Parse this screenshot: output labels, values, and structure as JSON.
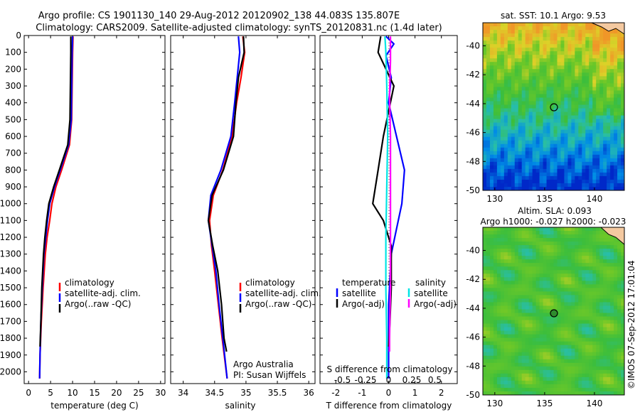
{
  "header": {
    "line1": "Argo profile: CS 1901130_140 29-Aug-2012 20120902_138 44.083S 135.807E",
    "line2": "Climatology: CARS2009. Satellite-adjusted climatology: synTS_20120831.nc (1.4d later)"
  },
  "colors": {
    "climatology": "#ff0000",
    "satellite": "#0000ff",
    "argo": "#000000",
    "salinity_sat": "#00e5e5",
    "salinity_argo": "#ff00ff"
  },
  "chart_data": [
    {
      "id": "temperature",
      "type": "line",
      "xlabel": "temperature (deg C)",
      "ylabel": "",
      "xlim": [
        -1,
        31
      ],
      "ylim": [
        2070,
        0
      ],
      "xticks": [
        0,
        5,
        10,
        15,
        20,
        25,
        30
      ],
      "yticks": [
        0,
        100,
        200,
        300,
        400,
        500,
        600,
        700,
        800,
        900,
        1000,
        1100,
        1200,
        1300,
        1400,
        1500,
        1600,
        1700,
        1800,
        1900,
        2000
      ],
      "legend": {
        "placement": "lower-middle",
        "entries": [
          "climatology",
          "satellite-adj. clim.",
          "Argo(..raw -QC)"
        ]
      },
      "series": [
        {
          "name": "climatology",
          "color": "red",
          "points": [
            [
              10.1,
              5
            ],
            [
              10.0,
              100
            ],
            [
              9.9,
              300
            ],
            [
              9.8,
              500
            ],
            [
              9.3,
              650
            ],
            [
              7.5,
              800
            ],
            [
              6.2,
              900
            ],
            [
              5.3,
              1000
            ],
            [
              4.8,
              1100
            ],
            [
              4.2,
              1200
            ],
            [
              3.8,
              1300
            ],
            [
              3.3,
              1500
            ],
            [
              2.9,
              1700
            ],
            [
              2.6,
              1900
            ],
            [
              2.5,
              2040
            ]
          ]
        },
        {
          "name": "satellite-adj. clim.",
          "color": "blue",
          "points": [
            [
              10.0,
              5
            ],
            [
              9.9,
              100
            ],
            [
              9.8,
              300
            ],
            [
              9.7,
              500
            ],
            [
              9.1,
              650
            ],
            [
              7.2,
              800
            ],
            [
              5.9,
              900
            ],
            [
              4.8,
              1000
            ],
            [
              4.3,
              1100
            ],
            [
              3.9,
              1200
            ],
            [
              3.5,
              1300
            ],
            [
              3.1,
              1500
            ],
            [
              2.8,
              1700
            ],
            [
              2.6,
              1900
            ],
            [
              2.5,
              2040
            ]
          ]
        },
        {
          "name": "Argo(..raw -QC)",
          "color": "black",
          "points": [
            [
              9.6,
              5
            ],
            [
              9.6,
              100
            ],
            [
              9.5,
              300
            ],
            [
              9.4,
              500
            ],
            [
              8.9,
              650
            ],
            [
              7.0,
              800
            ],
            [
              5.7,
              900
            ],
            [
              4.6,
              1000
            ],
            [
              4.1,
              1100
            ],
            [
              3.7,
              1200
            ],
            [
              3.4,
              1300
            ],
            [
              3.0,
              1500
            ],
            [
              2.8,
              1700
            ],
            [
              2.6,
              1850
            ]
          ]
        }
      ]
    },
    {
      "id": "salinity",
      "type": "line",
      "xlabel": "salinity",
      "ylabel": "",
      "xlim": [
        33.8,
        36.1
      ],
      "ylim": [
        2070,
        0
      ],
      "xticks": [
        34,
        34.5,
        35,
        35.5,
        36
      ],
      "legend": {
        "placement": "lower-right",
        "entries": [
          "climatology",
          "satellite-adj. clim.",
          "Argo(..raw -QC)"
        ]
      },
      "series": [
        {
          "name": "climatology",
          "color": "red",
          "points": [
            [
              34.95,
              5
            ],
            [
              34.98,
              100
            ],
            [
              34.92,
              250
            ],
            [
              34.85,
              400
            ],
            [
              34.78,
              600
            ],
            [
              34.63,
              800
            ],
            [
              34.48,
              950
            ],
            [
              34.42,
              1100
            ],
            [
              34.45,
              1250
            ],
            [
              34.5,
              1400
            ],
            [
              34.56,
              1600
            ],
            [
              34.62,
              1800
            ],
            [
              34.7,
              2040
            ]
          ]
        },
        {
          "name": "satellite-adj. clim.",
          "color": "blue",
          "points": [
            [
              34.88,
              5
            ],
            [
              34.9,
              100
            ],
            [
              34.86,
              250
            ],
            [
              34.82,
              400
            ],
            [
              34.76,
              600
            ],
            [
              34.6,
              800
            ],
            [
              34.44,
              950
            ],
            [
              34.4,
              1100
            ],
            [
              34.46,
              1250
            ],
            [
              34.52,
              1400
            ],
            [
              34.57,
              1600
            ],
            [
              34.63,
              1800
            ],
            [
              34.7,
              2040
            ]
          ]
        },
        {
          "name": "Argo(..raw -QC)",
          "color": "black",
          "points": [
            [
              34.96,
              5
            ],
            [
              34.97,
              100
            ],
            [
              34.88,
              250
            ],
            [
              34.84,
              400
            ],
            [
              34.8,
              600
            ],
            [
              34.64,
              800
            ],
            [
              34.46,
              950
            ],
            [
              34.4,
              1100
            ],
            [
              34.47,
              1250
            ],
            [
              34.55,
              1400
            ],
            [
              34.61,
              1600
            ],
            [
              34.65,
              1800
            ],
            [
              34.69,
              1880
            ]
          ]
        }
      ],
      "annotations": [
        "Argo Australia",
        "PI: Susan Wijffels"
      ]
    },
    {
      "id": "differences",
      "type": "line",
      "xlabel": "T difference from climatology",
      "xlabel_top": "S difference from climatology",
      "xlim": [
        -2.6,
        2.6
      ],
      "ylim": [
        2070,
        0
      ],
      "xticks": [
        -2,
        -1,
        0,
        1,
        2
      ],
      "xticks_s": [
        -0.5,
        -0.25,
        0,
        0.25,
        0.5
      ],
      "legend": {
        "placement": "lower-center",
        "temperature_heading": "temperature",
        "salinity_heading": "salinity",
        "entries": [
          "satellite",
          "Argo(-adj)",
          "satellite",
          "Argo(-adj)"
        ]
      },
      "series": [
        {
          "name": "temperature satellite",
          "color": "blue",
          "points": [
            [
              -0.1,
              5
            ],
            [
              0.2,
              50
            ],
            [
              -0.1,
              120
            ],
            [
              0.1,
              250
            ],
            [
              0,
              400
            ],
            [
              0.3,
              600
            ],
            [
              0.6,
              800
            ],
            [
              0.5,
              1000
            ],
            [
              0.3,
              1150
            ],
            [
              0.1,
              1300
            ],
            [
              0,
              1600
            ],
            [
              0,
              1900
            ],
            [
              0,
              2040
            ]
          ]
        },
        {
          "name": "temperature Argo(-adj)",
          "color": "black",
          "points": [
            [
              -0.3,
              5
            ],
            [
              -0.4,
              100
            ],
            [
              -0.1,
              200
            ],
            [
              0.2,
              300
            ],
            [
              0,
              450
            ],
            [
              -0.2,
              600
            ],
            [
              -0.4,
              800
            ],
            [
              -0.6,
              1000
            ],
            [
              -0.2,
              1100
            ],
            [
              0.1,
              1250
            ],
            [
              0.1,
              1500
            ],
            [
              0.05,
              1700
            ],
            [
              0,
              1850
            ]
          ]
        },
        {
          "name": "salinity satellite",
          "color": "cyan",
          "points": [
            [
              -0.04,
              5
            ],
            [
              -0.03,
              100
            ],
            [
              -0.02,
              300
            ],
            [
              -0.01,
              600
            ],
            [
              -0.02,
              900
            ],
            [
              -0.03,
              1200
            ],
            [
              -0.03,
              1500
            ],
            [
              -0.02,
              1800
            ],
            [
              -0.02,
              2040
            ]
          ]
        },
        {
          "name": "salinity Argo(-adj)",
          "color": "magenta",
          "points": [
            [
              0.02,
              5
            ],
            [
              0.02,
              150
            ],
            [
              0.01,
              350
            ],
            [
              0.02,
              600
            ],
            [
              0.02,
              900
            ],
            [
              0.02,
              1200
            ],
            [
              0.02,
              1500
            ],
            [
              0.01,
              1800
            ],
            [
              0.01,
              1880
            ]
          ]
        }
      ]
    },
    {
      "id": "sst_map",
      "type": "heatmap",
      "title": "sat. SST: 10.1  Argo: 9.53",
      "xlim": [
        128.8,
        143
      ],
      "ylim": [
        -50,
        -38.4
      ],
      "xticks": [
        130,
        135,
        140
      ],
      "yticks": [
        -40,
        -42,
        -44,
        -46,
        -48,
        -50
      ],
      "marker": [
        135.807,
        -44.083
      ]
    },
    {
      "id": "sla_map",
      "type": "heatmap",
      "title_line1": "Altim. SLA: 0.093",
      "title_line2": "Argo h1000: -0.027 h2000: -0.023",
      "xlim": [
        128.8,
        143
      ],
      "ylim": [
        -50,
        -38.4
      ],
      "xticks": [
        130,
        135,
        140
      ],
      "yticks": [
        -40,
        -42,
        -44,
        -46,
        -48,
        -50
      ],
      "marker": [
        135.807,
        -44.083
      ]
    }
  ],
  "footer": {
    "imos_stamp": "©IMOS 07-Sep-2012 17:01:04"
  }
}
